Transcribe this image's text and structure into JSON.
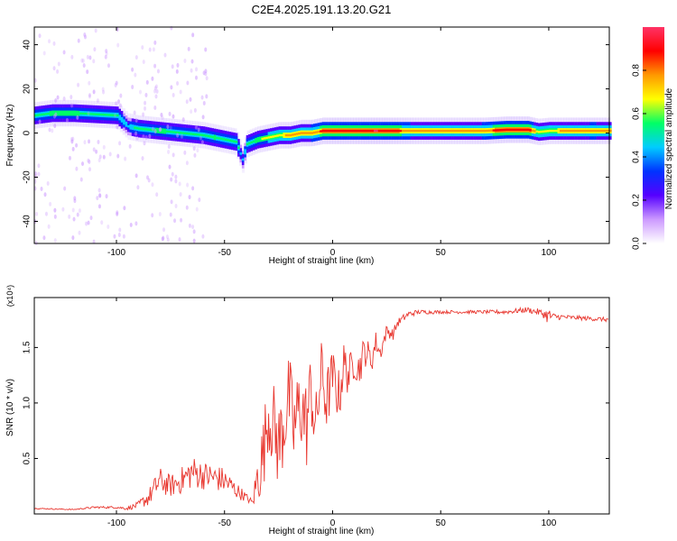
{
  "title": "C2E4.2025.191.13.20.G21",
  "chart_data": [
    {
      "type": "heatmap",
      "xlabel": "Height of straight line (km)",
      "ylabel": "Frequency (Hz)",
      "xlim": [
        -138,
        128
      ],
      "ylim": [
        -50,
        48
      ],
      "xticks": [
        -100,
        -50,
        0,
        50,
        100
      ],
      "yticks": [
        -40,
        -20,
        0,
        20,
        40
      ],
      "colorbar": {
        "label": "Normalized spectral amplitude",
        "range": [
          0,
          1
        ],
        "ticks": [
          0.0,
          0.2,
          0.4,
          0.6,
          0.8
        ],
        "colormap": [
          "#ffffff",
          "#cc99ff",
          "#5500ff",
          "#0033ff",
          "#00ccff",
          "#00ff66",
          "#ffff00",
          "#ff9900",
          "#ff0000",
          "#ff3366"
        ]
      },
      "ridge": {
        "x": [
          -138,
          -130,
          -120,
          -110,
          -100,
          -95,
          -90,
          -80,
          -70,
          -60,
          -55,
          -50,
          -45,
          -42,
          -40,
          -35,
          -30,
          -25,
          -20,
          -15,
          -10,
          -5,
          0,
          10,
          20,
          30,
          40,
          50,
          60,
          70,
          80,
          90,
          95,
          100,
          110,
          120,
          128
        ],
        "y": [
          8,
          9,
          9,
          8.5,
          8,
          3,
          2,
          1,
          0,
          -1,
          -2,
          -3,
          -4,
          -12,
          -5,
          -3,
          -2,
          -1,
          -1,
          0,
          0,
          1,
          1,
          1,
          1,
          1,
          1,
          1,
          1,
          1,
          1.5,
          1.5,
          0.5,
          1,
          1,
          1,
          1
        ],
        "amplitude": [
          0.55,
          0.6,
          0.6,
          0.55,
          0.5,
          0.45,
          0.55,
          0.6,
          0.55,
          0.5,
          0.6,
          0.5,
          0.55,
          0.4,
          0.55,
          0.6,
          0.65,
          0.7,
          0.75,
          0.75,
          0.8,
          0.85,
          0.9,
          0.9,
          0.95,
          0.85,
          0.75,
          0.75,
          0.75,
          0.8,
          0.9,
          0.9,
          0.65,
          0.7,
          0.75,
          0.8,
          0.75
        ]
      }
    },
    {
      "type": "line",
      "xlabel": "Height of straight line (km)",
      "ylabel": "SNR (10 * v/v)",
      "multiplier": "(x10⁴)",
      "xlim": [
        -138,
        128
      ],
      "ylim": [
        0,
        1.95
      ],
      "xticks": [
        -100,
        -50,
        0,
        50,
        100
      ],
      "yticks": [
        0.5,
        1.0,
        1.5
      ],
      "ytick_labels": [
        "0.5",
        "1.0",
        "1.5"
      ],
      "color": "#e8362e",
      "x": [
        -138,
        -120,
        -110,
        -100,
        -95,
        -90,
        -85,
        -80,
        -75,
        -70,
        -65,
        -60,
        -55,
        -50,
        -45,
        -40,
        -37,
        -35,
        -32,
        -30,
        -28,
        -25,
        -22,
        -20,
        -18,
        -15,
        -12,
        -10,
        -8,
        -5,
        -3,
        0,
        3,
        5,
        8,
        10,
        12,
        15,
        18,
        20,
        22,
        25,
        28,
        30,
        35,
        40,
        50,
        60,
        70,
        80,
        90,
        95,
        98,
        100,
        102,
        110,
        120,
        128
      ],
      "y": [
        0.05,
        0.04,
        0.06,
        0.06,
        0.05,
        0.08,
        0.15,
        0.3,
        0.25,
        0.3,
        0.38,
        0.35,
        0.33,
        0.3,
        0.22,
        0.15,
        0.1,
        0.3,
        0.55,
        0.9,
        0.85,
        0.6,
        0.9,
        1.05,
        0.75,
        1.0,
        0.8,
        1.15,
        0.75,
        1.3,
        1.0,
        1.25,
        1.05,
        1.35,
        1.25,
        1.4,
        1.3,
        1.48,
        1.38,
        1.55,
        1.45,
        1.65,
        1.62,
        1.72,
        1.8,
        1.82,
        1.82,
        1.82,
        1.82,
        1.82,
        1.84,
        1.82,
        1.8,
        1.78,
        1.78,
        1.77,
        1.76,
        1.75
      ],
      "noise": [
        0.005,
        0.005,
        0.01,
        0.01,
        0.015,
        0.03,
        0.08,
        0.12,
        0.1,
        0.12,
        0.15,
        0.13,
        0.12,
        0.12,
        0.08,
        0.04,
        0.03,
        0.25,
        0.35,
        0.35,
        0.4,
        0.4,
        0.45,
        0.4,
        0.4,
        0.4,
        0.4,
        0.35,
        0.3,
        0.3,
        0.3,
        0.25,
        0.25,
        0.22,
        0.2,
        0.18,
        0.17,
        0.15,
        0.12,
        0.1,
        0.08,
        0.06,
        0.05,
        0.04,
        0.03,
        0.02,
        0.015,
        0.015,
        0.015,
        0.02,
        0.025,
        0.03,
        0.04,
        0.08,
        0.03,
        0.02,
        0.02,
        0.02
      ]
    }
  ]
}
